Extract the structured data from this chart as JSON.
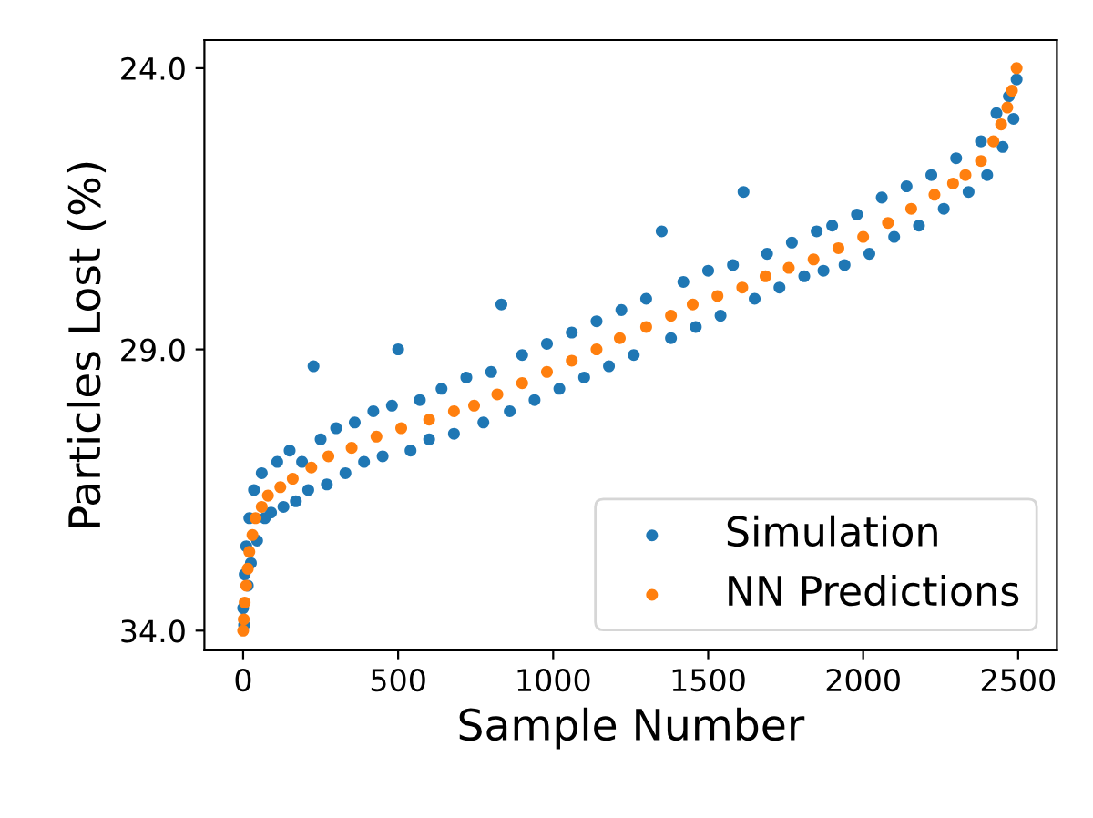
{
  "chart_data": {
    "type": "scatter",
    "xlabel": "Sample Number",
    "ylabel": "Particles Lost (%)",
    "xlim": [
      -125,
      2625
    ],
    "ylim": [
      34.35,
      23.5
    ],
    "xticks": [
      0,
      500,
      1000,
      1500,
      2000,
      2500
    ],
    "yticks": [
      {
        "value": 24,
        "label": "24.0"
      },
      {
        "value": 29,
        "label": "29.0"
      },
      {
        "value": 34,
        "label": "34.0"
      }
    ],
    "grid": false,
    "legend": "bottom right",
    "marker": "circle",
    "series": [
      {
        "name": "Simulation",
        "color": "#1f77b4",
        "x": [
          0,
          3,
          5,
          10,
          15,
          20,
          25,
          35,
          45,
          60,
          70,
          90,
          110,
          130,
          150,
          170,
          190,
          210,
          227,
          250,
          270,
          300,
          330,
          360,
          390,
          420,
          450,
          480,
          500,
          540,
          570,
          600,
          640,
          680,
          720,
          775,
          800,
          833,
          860,
          900,
          940,
          980,
          1020,
          1060,
          1100,
          1140,
          1180,
          1220,
          1260,
          1300,
          1350,
          1380,
          1420,
          1460,
          1500,
          1540,
          1580,
          1614,
          1650,
          1690,
          1730,
          1770,
          1810,
          1850,
          1872,
          1900,
          1940,
          1980,
          2020,
          2060,
          2100,
          2140,
          2180,
          2220,
          2260,
          2300,
          2340,
          2380,
          2400,
          2430,
          2450,
          2470,
          2485,
          2495
        ],
        "values": [
          33.6,
          33.9,
          33.0,
          32.5,
          33.2,
          32.0,
          32.8,
          31.5,
          32.4,
          31.2,
          32.0,
          31.9,
          31.0,
          31.8,
          30.8,
          31.7,
          31.0,
          31.5,
          29.3,
          30.6,
          31.4,
          30.4,
          31.2,
          30.3,
          31.0,
          30.1,
          30.9,
          30.0,
          29.0,
          30.8,
          29.9,
          30.6,
          29.7,
          30.5,
          29.5,
          30.3,
          29.4,
          28.2,
          30.1,
          29.1,
          29.9,
          28.9,
          29.7,
          28.7,
          29.5,
          28.5,
          29.3,
          28.3,
          29.1,
          28.1,
          26.9,
          28.8,
          27.8,
          28.6,
          27.6,
          28.4,
          27.5,
          26.2,
          28.1,
          27.3,
          27.9,
          27.1,
          27.7,
          26.9,
          27.6,
          26.8,
          27.5,
          26.6,
          27.3,
          26.3,
          27.0,
          26.1,
          26.8,
          25.9,
          26.5,
          25.6,
          26.2,
          25.3,
          25.9,
          24.8,
          25.4,
          24.5,
          24.9,
          24.2
        ]
      },
      {
        "name": "NN Predictions",
        "color": "#ff7f0e",
        "x": [
          0,
          2,
          5,
          10,
          15,
          20,
          30,
          40,
          60,
          80,
          120,
          160,
          220,
          275,
          350,
          430,
          510,
          600,
          680,
          745,
          820,
          900,
          980,
          1060,
          1140,
          1215,
          1300,
          1380,
          1450,
          1530,
          1610,
          1685,
          1760,
          1840,
          1920,
          2000,
          2080,
          2155,
          2230,
          2290,
          2330,
          2380,
          2420,
          2445,
          2465,
          2480,
          2495
        ],
        "values": [
          34.0,
          33.8,
          33.5,
          33.2,
          32.9,
          32.6,
          32.3,
          32.0,
          31.8,
          31.6,
          31.45,
          31.3,
          31.1,
          30.9,
          30.75,
          30.55,
          30.4,
          30.25,
          30.1,
          30.0,
          29.8,
          29.6,
          29.4,
          29.2,
          29.0,
          28.8,
          28.6,
          28.4,
          28.2,
          28.05,
          27.9,
          27.7,
          27.55,
          27.4,
          27.2,
          27.0,
          26.75,
          26.5,
          26.25,
          26.05,
          25.9,
          25.65,
          25.3,
          25.0,
          24.7,
          24.4,
          24.0
        ]
      }
    ]
  }
}
